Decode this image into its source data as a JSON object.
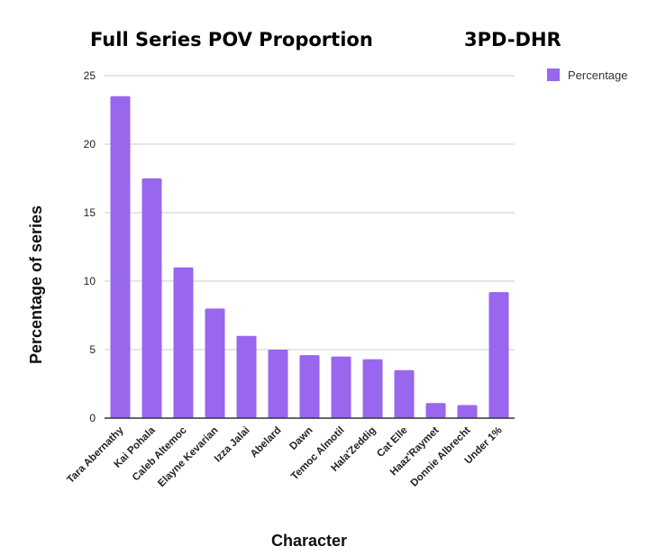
{
  "chart_data": {
    "type": "bar",
    "title": "Full Series POV Proportion",
    "subtitle": "3PD-DHR",
    "xlabel": "Character",
    "ylabel": "Percentage of series",
    "ylim": [
      0,
      25
    ],
    "yticks": [
      0,
      5,
      10,
      15,
      20,
      25
    ],
    "grid": true,
    "legend_position": "top-right",
    "bar_color": "#9966ee",
    "categories": [
      "Tara Abernathy",
      "Kai Pohala",
      "Caleb Altemoc",
      "Elayne Kevarian",
      "Izza Jalai",
      "Abelard",
      "Dawn",
      "Temoc Almotil",
      "Hala'Zeddig",
      "Cat Elle",
      "Haaz'Raymet",
      "Donnie Albrecht",
      "Under 1%"
    ],
    "series": [
      {
        "name": "Percentage",
        "values": [
          23.5,
          17.5,
          11.0,
          8.0,
          6.0,
          5.0,
          4.6,
          4.5,
          4.3,
          3.5,
          1.1,
          0.95,
          9.2
        ]
      }
    ]
  }
}
